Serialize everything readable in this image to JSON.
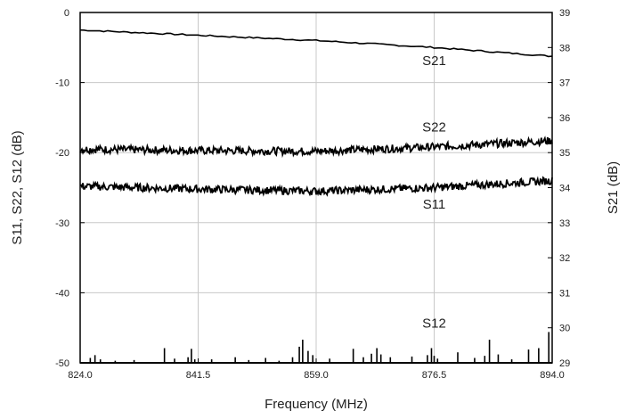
{
  "chart_data": {
    "type": "line",
    "xlabel": "Frequency (MHz)",
    "ylabel_left": "S11, S22, S12 (dB)",
    "ylabel_right": "S21 (dB)",
    "xlim": [
      824.0,
      894.0
    ],
    "ylim_left": [
      -50,
      0
    ],
    "ylim_right": [
      29,
      39
    ],
    "grid": true,
    "x_ticks": [
      "824.0",
      "841.5",
      "859.0",
      "876.5",
      "894.0"
    ],
    "y_ticks_left": [
      "0",
      "-10",
      "-20",
      "-30",
      "-40",
      "-50"
    ],
    "y_ticks_right": [
      "39",
      "38",
      "37",
      "36",
      "35",
      "34",
      "33",
      "32",
      "31",
      "30",
      "29"
    ],
    "series": [
      {
        "name": "S21",
        "axis": "right",
        "x": [
          824.0,
          841.5,
          859.0,
          876.5,
          894.0
        ],
        "y": [
          38.5,
          38.35,
          38.2,
          38.0,
          37.75
        ],
        "label_x": 876.5,
        "label_y": 37.5
      },
      {
        "name": "S22",
        "axis": "left",
        "x": [
          824.0,
          841.5,
          859.0,
          876.5,
          894.0
        ],
        "y": [
          -19.5,
          -19.7,
          -19.8,
          -19.2,
          -18.3
        ],
        "label_x": 876.5,
        "label_y": -17.0
      },
      {
        "name": "S11",
        "axis": "left",
        "x": [
          824.0,
          841.5,
          859.0,
          876.5,
          894.0
        ],
        "y": [
          -24.8,
          -25.2,
          -25.5,
          -25.0,
          -24.0
        ],
        "label_x": 876.5,
        "label_y": -28.0
      },
      {
        "name": "S12",
        "axis": "left",
        "type": "spikes",
        "x": [
          825.5,
          826.2,
          827.0,
          829.2,
          832.0,
          836.5,
          838.0,
          840.0,
          840.5,
          841.0,
          843.5,
          847.0,
          849.0,
          851.5,
          853.5,
          855.5,
          856.5,
          857.0,
          857.8,
          858.5,
          861.0,
          864.5,
          866.0,
          867.2,
          868.0,
          868.6,
          870.0,
          873.2,
          875.5,
          876.1,
          876.5,
          877.0,
          880.0,
          882.5,
          884.0,
          884.7,
          886.0,
          888.0,
          890.5,
          892.0,
          893.5
        ],
        "y": [
          -49.3,
          -48.9,
          -49.5,
          -49.7,
          -49.6,
          -47.9,
          -49.4,
          -49.2,
          -48.0,
          -49.5,
          -49.5,
          -49.2,
          -49.6,
          -49.3,
          -49.7,
          -49.2,
          -47.7,
          -46.7,
          -48.3,
          -48.9,
          -49.4,
          -48.0,
          -49.2,
          -48.7,
          -47.9,
          -48.8,
          -49.2,
          -49.1,
          -48.9,
          -47.9,
          -49.0,
          -49.4,
          -48.5,
          -49.3,
          -49.0,
          -46.7,
          -48.8,
          -49.5,
          -48.1,
          -47.9,
          -45.6
        ],
        "label_x": 876.5,
        "label_y": -45.0
      }
    ]
  }
}
